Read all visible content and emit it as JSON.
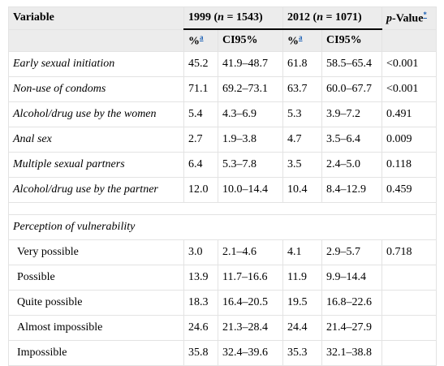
{
  "header": {
    "variable": "Variable",
    "year1": {
      "pre": "1999 (",
      "n": "n",
      "post": " = 1543)"
    },
    "year2": {
      "pre": "2012 (",
      "n": "n",
      "post": " = 1071)"
    },
    "pvalue": {
      "p": "p",
      "rest": "-Value",
      "sup": "*"
    },
    "pct": "%",
    "pct_sup": "a",
    "ci": "CI95%"
  },
  "table": {
    "rows": [
      {
        "label": "Early sexual initiation",
        "cells": [
          "45.2",
          "41.9–48.7",
          "61.8",
          "58.5–65.4"
        ],
        "p": "<0.001"
      },
      {
        "label": "Non-use of condoms",
        "cells": [
          "71.1",
          "69.2–73.1",
          "63.7",
          "60.0–67.7"
        ],
        "p": "<0.001"
      },
      {
        "label": "Alcohol/drug use by the women",
        "cells": [
          "5.4",
          "4.3–6.9",
          "5.3",
          "3.9–7.2"
        ],
        "p": "0.491"
      },
      {
        "label": "Anal sex",
        "cells": [
          "2.7",
          "1.9–3.8",
          "4.7",
          "3.5–6.4"
        ],
        "p": "0.009"
      },
      {
        "label": "Multiple sexual partners",
        "cells": [
          "6.4",
          "5.3–7.8",
          "3.5",
          "2.4–5.0"
        ],
        "p": "0.118"
      },
      {
        "label": "Alcohol/drug use by the partner",
        "cells": [
          "12.0",
          "10.0–14.4",
          "10.4",
          "8.4–12.9"
        ],
        "p": "0.459"
      }
    ],
    "section": "Perception of vulnerability",
    "subrows": [
      {
        "label": "Very possible",
        "cells": [
          "3.0",
          "2.1–4.6",
          "4.1",
          "2.9–5.7"
        ],
        "p": "0.718"
      },
      {
        "label": "Possible",
        "cells": [
          "13.9",
          "11.7–16.6",
          "11.9",
          "9.9–14.4"
        ]
      },
      {
        "label": "Quite possible",
        "cells": [
          "18.3",
          "16.4–20.5",
          "19.5",
          "16.8–22.6"
        ]
      },
      {
        "label": "Almost impossible",
        "cells": [
          "24.6",
          "21.3–28.4",
          "24.4",
          "21.4–27.9"
        ]
      },
      {
        "label": "Impossible",
        "cells": [
          "35.8",
          "32.4–39.6",
          "35.3",
          "32.1–38.8"
        ]
      }
    ]
  }
}
